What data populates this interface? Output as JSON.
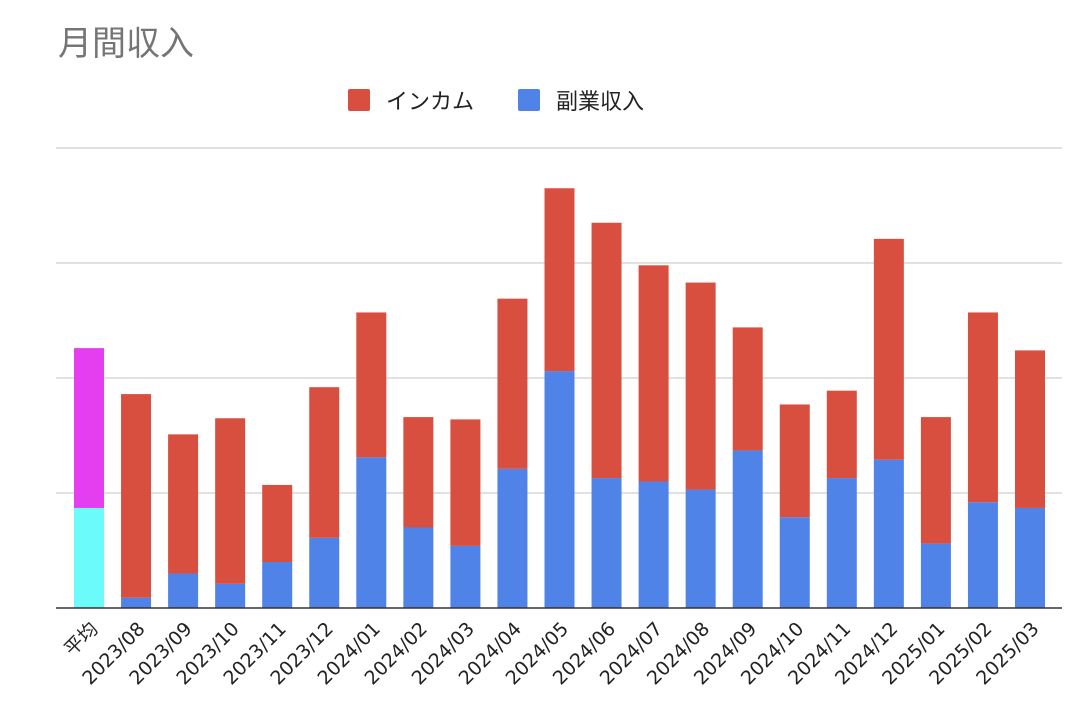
{
  "chart_data": {
    "type": "bar",
    "stacked": true,
    "title": "月間収入",
    "categories": [
      "平均",
      "2023/08",
      "2023/09",
      "2023/10",
      "2023/11",
      "2023/12",
      "2024/01",
      "2024/02",
      "2024/03",
      "2024/04",
      "2024/05",
      "2024/06",
      "2024/07",
      "2024/08",
      "2024/09",
      "2024/10",
      "2024/11",
      "2024/12",
      "2025/01",
      "2025/02",
      "2025/03"
    ],
    "series": [
      {
        "name": "副業収入",
        "color": "#4f83e8",
        "values": [
          0.87,
          0.09,
          0.3,
          0.21,
          0.4,
          0.61,
          1.31,
          0.7,
          0.54,
          1.21,
          2.06,
          1.13,
          1.1,
          1.03,
          1.37,
          0.79,
          1.13,
          1.29,
          0.56,
          0.92,
          0.87
        ]
      },
      {
        "name": "インカム",
        "color": "#d94f3f",
        "values": [
          1.39,
          1.77,
          1.21,
          1.44,
          0.67,
          1.31,
          1.26,
          0.96,
          1.1,
          1.48,
          1.59,
          2.22,
          1.88,
          1.8,
          1.07,
          0.98,
          0.76,
          1.92,
          1.1,
          1.65,
          1.37
        ]
      }
    ],
    "highlight_colors": {
      "series_0": "#6cfbfb",
      "series_1": "#e53ef0"
    },
    "ylim": [
      0,
      4
    ],
    "y_gridlines": [
      0,
      1,
      2,
      3,
      4
    ],
    "y_tick_labels_shown": false,
    "legend_position": "top-center",
    "grid": true
  }
}
